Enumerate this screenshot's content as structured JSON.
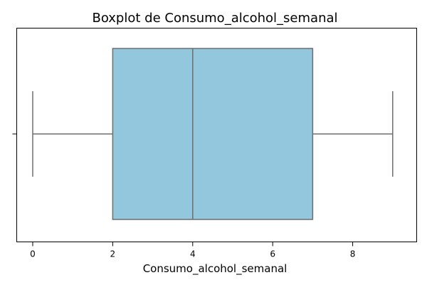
{
  "chart_data": {
    "type": "boxplot",
    "title": "Boxplot de Consumo_alcohol_semanal",
    "xlabel": "Consumo_alcohol_semanal",
    "ylabel": "",
    "orientation": "horizontal",
    "xlim": [
      -0.4,
      9.6
    ],
    "xticks": [
      0,
      2,
      4,
      6,
      8
    ],
    "xtick_labels": [
      "0",
      "2",
      "4",
      "6",
      "8"
    ],
    "box": {
      "whisker_low": 0,
      "q1": 2,
      "median": 4,
      "q3": 7,
      "whisker_high": 9
    },
    "grid": false,
    "colors": {
      "box_fill": "#92c7de",
      "lines": "#6e6e6e",
      "axes": "#000000"
    }
  }
}
